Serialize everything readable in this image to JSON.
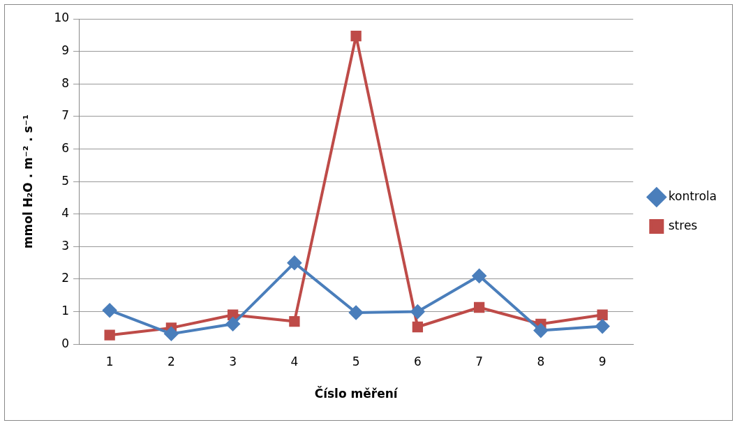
{
  "chart_data": {
    "type": "line",
    "xlabel": "Číslo měření",
    "ylabel": "mmol H₂O . m⁻² . s⁻¹",
    "categories": [
      "1",
      "2",
      "3",
      "4",
      "5",
      "6",
      "7",
      "8",
      "9"
    ],
    "series": [
      {
        "name": "kontrola",
        "color": "#4a7ebb",
        "marker": "diamond",
        "values": [
          1.04,
          0.32,
          0.62,
          2.5,
          0.97,
          1.0,
          2.1,
          0.42,
          0.55
        ]
      },
      {
        "name": "stres",
        "color": "#be4b48",
        "marker": "square",
        "values": [
          0.28,
          0.5,
          0.9,
          0.7,
          9.47,
          0.53,
          1.13,
          0.62,
          0.9
        ]
      }
    ],
    "ylim": [
      0,
      10
    ],
    "yticks": [
      0,
      1,
      2,
      3,
      4,
      5,
      6,
      7,
      8,
      9,
      10
    ],
    "grid": "y",
    "legend": "right",
    "line_style": "solid"
  }
}
